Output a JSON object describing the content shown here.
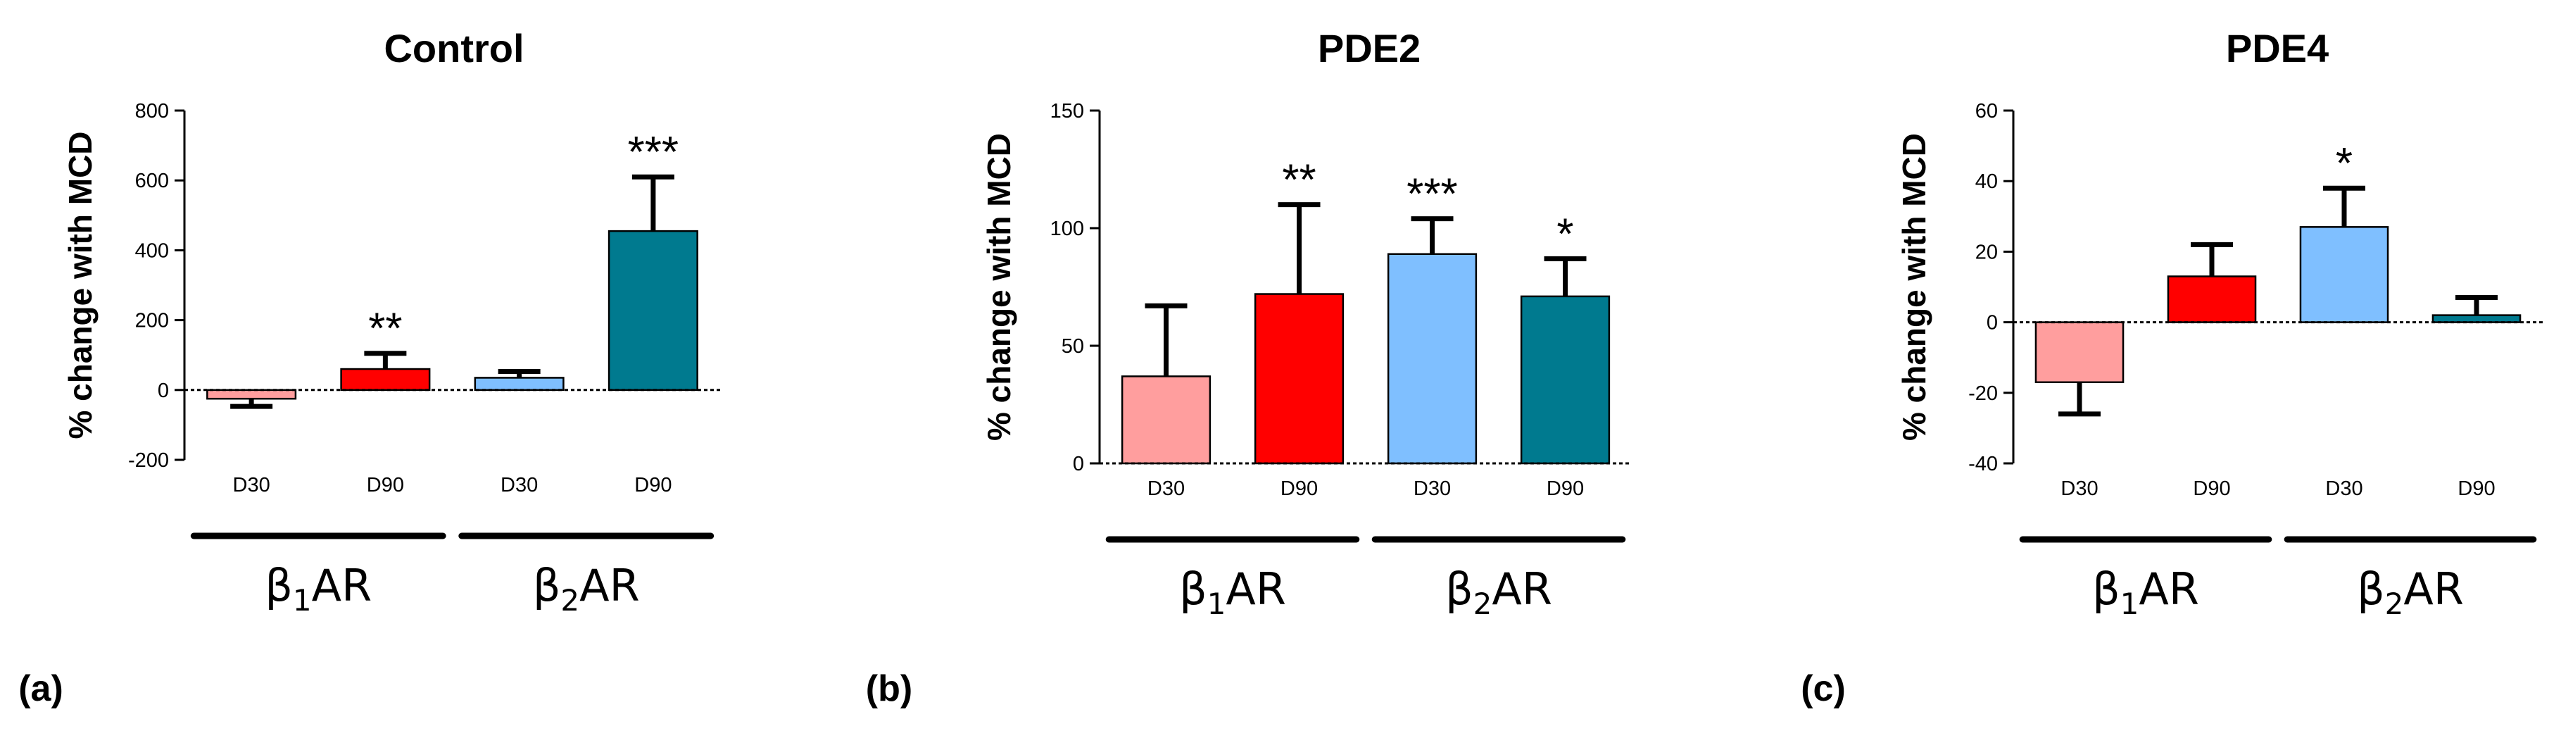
{
  "chart_data": [
    {
      "type": "bar",
      "panel": "(a)",
      "title": "Control",
      "ylabel": "% change with MCD",
      "ylim": [
        -200,
        800
      ],
      "yticks": [
        -200,
        0,
        200,
        400,
        600,
        800
      ],
      "categories": [
        "D30",
        "D90",
        "D30",
        "D90"
      ],
      "values": [
        -25,
        60,
        35,
        455
      ],
      "errors": [
        22,
        45,
        18,
        155
      ],
      "significance": [
        "",
        "**",
        "",
        "***"
      ],
      "colors": [
        "#ff9e9e",
        "#ff0000",
        "#7fbfff",
        "#007a8f"
      ],
      "groups": [
        {
          "greek": "β",
          "sub": "1",
          "rest": "AR"
        },
        {
          "greek": "β",
          "sub": "2",
          "rest": "AR"
        }
      ]
    },
    {
      "type": "bar",
      "panel": "(b)",
      "title": "PDE2",
      "ylabel": "% change with MCD",
      "ylim": [
        0,
        150
      ],
      "yticks": [
        0,
        50,
        100,
        150
      ],
      "categories": [
        "D30",
        "D90",
        "D30",
        "D90"
      ],
      "values": [
        37,
        72,
        89,
        71
      ],
      "errors": [
        30,
        38,
        15,
        16
      ],
      "significance": [
        "",
        "**",
        "***",
        "*"
      ],
      "colors": [
        "#ff9e9e",
        "#ff0000",
        "#7fbfff",
        "#007a8f"
      ],
      "groups": [
        {
          "greek": "β",
          "sub": "1",
          "rest": "AR"
        },
        {
          "greek": "β",
          "sub": "2",
          "rest": "AR"
        }
      ]
    },
    {
      "type": "bar",
      "panel": "(c)",
      "title": "PDE4",
      "ylabel": "% change with MCD",
      "ylim": [
        -40,
        60
      ],
      "yticks": [
        -40,
        -20,
        0,
        20,
        40,
        60
      ],
      "categories": [
        "D30",
        "D90",
        "D30",
        "D90"
      ],
      "values": [
        -17,
        13,
        27,
        2
      ],
      "errors": [
        9,
        9,
        11,
        5
      ],
      "significance": [
        "",
        "",
        "*",
        ""
      ],
      "colors": [
        "#ff9e9e",
        "#ff0000",
        "#7fbfff",
        "#007a8f"
      ],
      "groups": [
        {
          "greek": "β",
          "sub": "1",
          "rest": "AR"
        },
        {
          "greek": "β",
          "sub": "2",
          "rest": "AR"
        }
      ]
    }
  ]
}
